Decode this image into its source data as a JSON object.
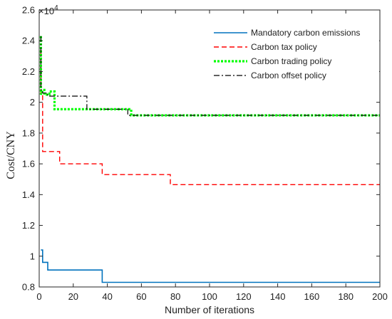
{
  "chart_data": {
    "type": "line",
    "xlabel": "Number of iterations",
    "ylabel": "Cost/CNY",
    "y_multiplier_label": "×10",
    "y_multiplier_exp": "4",
    "xlim": [
      0,
      200
    ],
    "ylim": [
      0.8,
      2.6
    ],
    "xticks": [
      0,
      20,
      40,
      60,
      80,
      100,
      120,
      140,
      160,
      180,
      200
    ],
    "yticks": [
      0.8,
      1.0,
      1.2,
      1.4,
      1.6,
      1.8,
      2.0,
      2.2,
      2.4,
      2.6
    ],
    "xtick_labels": [
      "0",
      "20",
      "40",
      "60",
      "80",
      "100",
      "120",
      "140",
      "160",
      "180",
      "200"
    ],
    "ytick_labels": [
      "0.8",
      "1",
      "1.2",
      "1.4",
      "1.6",
      "1.8",
      "2",
      "2.2",
      "2.4",
      "2.6"
    ],
    "grid": false,
    "legend_position": "top-right",
    "series": [
      {
        "name": "Mandatory carbon emissions",
        "color": "#0072BD",
        "dash": "solid",
        "x": [
          1,
          2,
          2,
          5,
          5,
          37,
          37,
          200
        ],
        "y": [
          1.04,
          1.04,
          0.96,
          0.96,
          0.91,
          0.91,
          0.83,
          0.83
        ]
      },
      {
        "name": "Carbon tax policy",
        "color": "#FF0000",
        "dash": "dashed",
        "x": [
          1,
          1,
          2,
          2,
          12,
          12,
          37,
          37,
          77,
          77,
          200
        ],
        "y": [
          2.34,
          2.05,
          2.05,
          1.68,
          1.68,
          1.6,
          1.6,
          1.53,
          1.53,
          1.465,
          1.465
        ]
      },
      {
        "name": "Carbon trading policy",
        "color": "#00FF00",
        "dash": "dotted",
        "x": [
          1,
          1,
          2,
          3,
          3,
          6,
          6,
          9,
          9,
          54,
          54,
          200
        ],
        "y": [
          2.43,
          2.05,
          2.08,
          2.08,
          2.05,
          2.05,
          2.07,
          2.07,
          1.955,
          1.955,
          1.915,
          1.915
        ]
      },
      {
        "name": "Carbon offset policy",
        "color": "#000000",
        "dash": "dashdot",
        "x": [
          1,
          1,
          2,
          2,
          5,
          5,
          28,
          28,
          52,
          52,
          200
        ],
        "y": [
          2.43,
          2.08,
          2.08,
          2.06,
          2.06,
          2.04,
          2.04,
          1.955,
          1.955,
          1.915,
          1.915
        ]
      }
    ]
  }
}
